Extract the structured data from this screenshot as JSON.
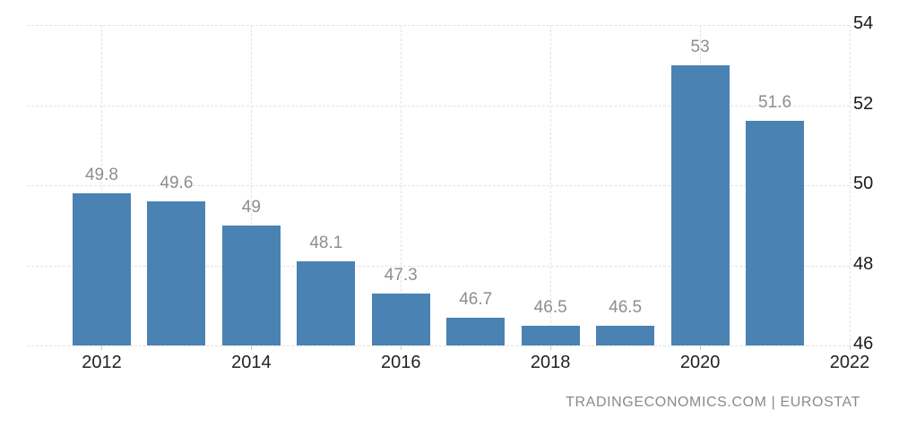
{
  "chart_data": {
    "type": "bar",
    "title": "",
    "xlabel": "",
    "ylabel": "",
    "source_attribution": "TRADINGECONOMICS.COM | EUROSTAT",
    "categories": [
      2012,
      2013,
      2014,
      2015,
      2016,
      2017,
      2018,
      2019,
      2020,
      2021
    ],
    "values": [
      49.8,
      49.6,
      49,
      48.1,
      47.3,
      46.7,
      46.5,
      46.5,
      53,
      51.6
    ],
    "bar_labels": [
      "49.8",
      "49.6",
      "49",
      "48.1",
      "47.3",
      "46.7",
      "46.5",
      "46.5",
      "53",
      "51.6"
    ],
    "x_ticks": [
      2012,
      2014,
      2016,
      2018,
      2020,
      2022
    ],
    "x_tick_labels": [
      "2012",
      "2014",
      "2016",
      "2018",
      "2020",
      "2022"
    ],
    "y_ticks": [
      46,
      48,
      50,
      52,
      54
    ],
    "y_tick_labels": [
      "46",
      "48",
      "50",
      "52",
      "54"
    ],
    "ylim": [
      46,
      54
    ],
    "xlim": [
      2011,
      2022
    ],
    "grid": true,
    "legend_position": "none",
    "colors": {
      "bar": "#4a82b4",
      "value_label": "#8e8e8e",
      "x_axis_label": "#222222",
      "y_axis_label": "#1b1b1b",
      "gridline": "#e3e3e3",
      "tick": "#cccccc",
      "background": "#ffffff"
    }
  },
  "footer": {
    "attribution": "TRADINGECONOMICS.COM | EUROSTAT",
    "color": "#8a8a8a"
  }
}
